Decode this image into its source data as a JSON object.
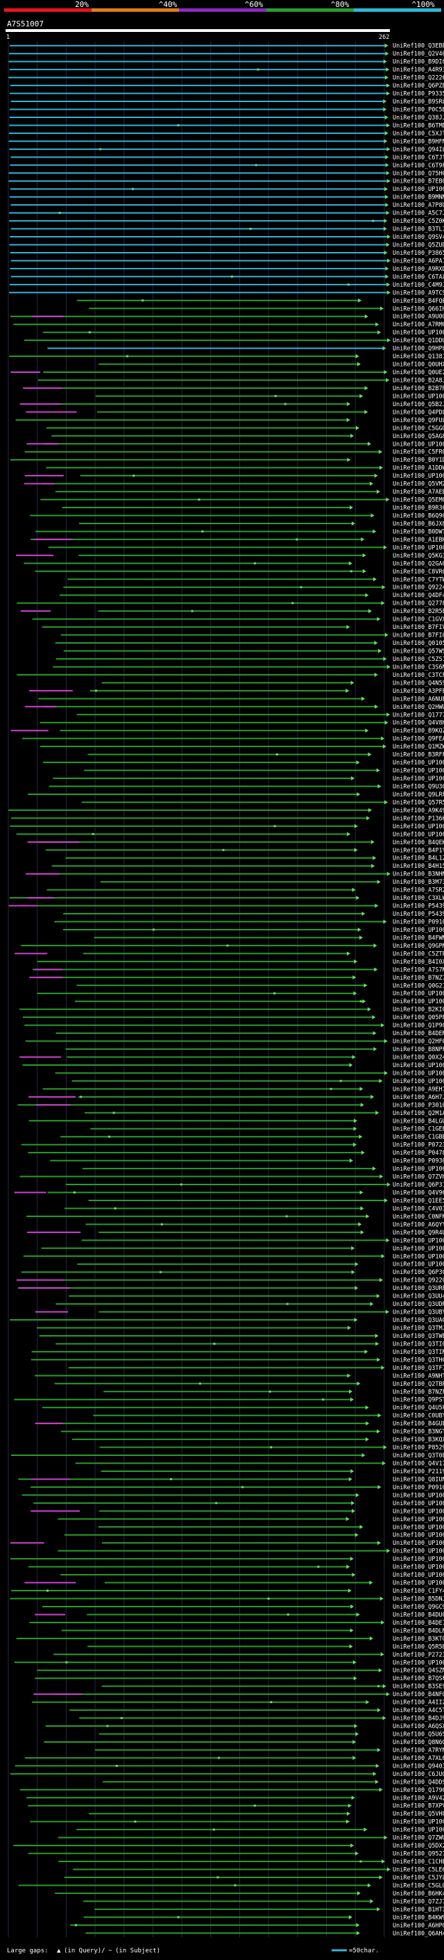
{
  "header": {
    "scale_labels": [
      "20%",
      "^40%",
      "^60%",
      "^80%",
      "^100%"
    ],
    "scale_colors": [
      "#e8141a",
      "#e07b1a",
      "#8a2bbf",
      "#2a9d32",
      "#2ab8d4"
    ],
    "query_id": "A7S51007",
    "query_start": "1",
    "query_length": "262"
  },
  "footer": {
    "large_gaps_text": "Large gaps:",
    "in_query_text": "(in Query)/",
    "in_subject_text": "(in Subject)",
    "legend_text": "=50char."
  },
  "colors": {
    "cyan": "#3ab0d8",
    "green": "#2a9d2a",
    "bright_green": "#66e066",
    "magenta": "#d040d0",
    "white": "#ffffff"
  },
  "chart_data": {
    "type": "alignment-overview",
    "title": "A7S51007",
    "query_length": 262,
    "labels": [
      "UniRef100_Q3EBE6",
      "UniRef100_Q2V400",
      "UniRef100_B9DI05",
      "UniRef100_A4R937",
      "UniRef100_Q22263",
      "UniRef100_Q6PZE8",
      "UniRef100_P93358",
      "UniRef100_B9SRL2",
      "UniRef100_P0C5B7",
      "UniRef100_Q38JJ2",
      "UniRef100_B6TMB2",
      "UniRef100_C5XJT8",
      "UniRef100_B9HFN6",
      "UniRef100_Q94IL2",
      "UniRef100_C6TJT5",
      "UniRef100_C6T9F8",
      "UniRef100_Q75H08",
      "UniRef100_B7EB08",
      "UniRef100_UP1000..",
      "UniRef100_B9MNM0",
      "UniRef100_A7P8U0",
      "UniRef100_A5C7J5",
      "UniRef100_C5Z0K0",
      "UniRef100_B3TL77",
      "UniRef100_Q9SV43",
      "UniRef100_Q5ZUD6",
      "UniRef100_P38651",
      "UniRef100_A6PA19",
      "UniRef100_A9RXD0",
      "UniRef100_C6TAX9",
      "UniRef100_C4M9J8",
      "UniRef100_A9TCS7",
      "UniRef100_B4FQE7",
      "UniRef100_Q66IH3",
      "UniRef100_A9U0Q1",
      "UniRef100_A7RM09",
      "UniRef100_UP1000..",
      "UniRef100_Q1DDU7",
      "UniRef100_Q9HPL0",
      "UniRef100_Q13811",
      "UniRef100_Q0UHX3",
      "UniRef100_Q0UE24",
      "UniRef100_B2A8J0",
      "UniRef100_B2B7R5",
      "UniRef100_UP1000..",
      "UniRef100_Q5B2J4",
      "UniRef100_Q4PDL1",
      "UniRef100_Q9FUL2",
      "UniRef100_C5GGQ8",
      "UniRef100_Q5AG81",
      "UniRef100_UP1000..",
      "UniRef100_C5FR01",
      "UniRef100_B0Y1D4",
      "UniRef100_A1DDW7",
      "UniRef100_UP1000..",
      "UniRef100_Q5VMZ4",
      "UniRef100_A7AEB7",
      "UniRef100_Q5EM02",
      "UniRef100_B9R369",
      "UniRef100_B6Q903",
      "UniRef100_B6JX82",
      "UniRef100_B0DWT9",
      "UniRef100_A1EBH2",
      "UniRef100_UP1000..",
      "UniRef100_Q5KG34",
      "UniRef100_Q2GA05",
      "UniRef100_C8VR03",
      "UniRef100_C7YTW2",
      "UniRef100_Q92249",
      "UniRef100_Q4DF46",
      "UniRef100_Q27780",
      "UniRef100_B2R5E4",
      "UniRef100_C1GVX9",
      "UniRef100_B7FIV0",
      "UniRef100_B7FI07",
      "UniRef100_Q01053",
      "UniRef100_Q57WS0",
      "UniRef100_C5ZS16",
      "UniRef100_C3S6N3",
      "UniRef100_C3TCF3",
      "UniRef100_Q4N5S2",
      "UniRef100_A3PFE2",
      "UniRef100_A6NUE9",
      "UniRef100_Q2HWU2",
      "UniRef100_Q17770",
      "UniRef100_Q4V8H9",
      "UniRef100_B9KQZ6",
      "UniRef100_Q9FEA7",
      "UniRef100_Q1MZW3",
      "UniRef100_B3RFF9",
      "UniRef100_UP1000..",
      "UniRef100_UP1000..",
      "UniRef100_UP1000..",
      "UniRef100_Q9U307",
      "UniRef100_Q9LRF6",
      "UniRef100_Q57R59",
      "UniRef100_A9K496",
      "UniRef100_P13667",
      "UniRef100_UP1000..",
      "UniRef100_UP1000..",
      "UniRef100_B4QEK5",
      "UniRef100_B4P1Y3",
      "UniRef100_B4L127",
      "UniRef100_B4H155",
      "UniRef100_B3NHN4",
      "UniRef100_B3M733",
      "UniRef100_A7SR22",
      "UniRef100_C3XLW1",
      "UniRef100_P54399-2",
      "UniRef100_P54399",
      "UniRef100_P09102",
      "UniRef100_UP1000..",
      "UniRef100_B4FWM2",
      "UniRef100_Q9GPM2",
      "UniRef100_C5ZTP5",
      "UniRef100_B4I0X8",
      "UniRef100_A7S7M8",
      "UniRef100_B7NZ72",
      "UniRef100_Q0G216",
      "UniRef100_UP1000..",
      "UniRef100_UP1000..",
      "UniRef100_B2KI00",
      "UniRef100_Q05PP0",
      "UniRef100_Q1P9C5",
      "UniRef100_B4DEM1",
      "UniRef100_Q2HF02",
      "UniRef100_B8NPF9",
      "UniRef100_Q0X248",
      "UniRef100_UP1000..",
      "UniRef100_UP1000..",
      "UniRef100_UP1000..",
      "UniRef100_A9EH76",
      "UniRef100_A6H7J6",
      "UniRef100_P30101",
      "UniRef100_Q2M1A2",
      "UniRef100_B4LGU3",
      "UniRef100_C1GEE2",
      "UniRef100_C1GBB3",
      "UniRef100_P07237",
      "UniRef100_P04785",
      "UniRef100_P09307",
      "UniRef100_UP1000..",
      "UniRef100_Q7ZVH2",
      "UniRef100_Q6P311",
      "UniRef100_Q4V963",
      "UniRef100_Q1EE59",
      "UniRef100_C4V037",
      "UniRef100_C0NFM2",
      "UniRef100_A6QYY4",
      "UniRef100_Q9R4U2",
      "UniRef100_UP1000..",
      "UniRef100_UP1000..",
      "UniRef100_UP1000..",
      "UniRef100_UP1000..",
      "UniRef100_Q6P3C0",
      "UniRef100_Q922C8",
      "UniRef100_Q3URP6",
      "UniRef100_Q3UU48",
      "UniRef100_Q3UDR2",
      "UniRef100_Q3UBY9",
      "UniRef100_Q3UAC3",
      "UniRef100_Q3TMJ8",
      "UniRef100_Q3TWE3",
      "UniRef100_Q3TI05",
      "UniRef100_Q3TIM0",
      "UniRef100_Q3THC3",
      "UniRef100_Q3TF72",
      "UniRef100_A9NHT1",
      "UniRef100_Q2TBP4",
      "UniRef100_B7NZF1",
      "UniRef100_Q9PST0",
      "UniRef100_Q4U5F6",
      "UniRef100_C0UBY4",
      "UniRef100_B4GUE5",
      "UniRef100_B3NGT9",
      "UniRef100_B3KQX2",
      "UniRef100_P85299",
      "UniRef100_Q3T0E4",
      "UniRef100_Q4V174",
      "UniRef100_P21195",
      "UniRef100_Q8IUN0",
      "UniRef100_P09103",
      "UniRef100_UP1000..",
      "UniRef100_UP1000..",
      "UniRef100_UP1000..",
      "UniRef100_UP1000..",
      "UniRef100_UP1000..",
      "UniRef100_UP1000..",
      "UniRef100_UP1000..",
      "UniRef100_UP1000..",
      "UniRef100_UP1000..",
      "UniRef100_UP1000..",
      "UniRef100_UP1000..",
      "UniRef100_UP1000..",
      "UniRef100_C1FY49",
      "UniRef100_B5DNJ7",
      "UniRef100_Q9GC96",
      "UniRef100_B4DU05",
      "UniRef100_B4DE78",
      "UniRef100_B4DLN6",
      "UniRef100_B3KTQ9",
      "UniRef100_Q5R5B6",
      "UniRef100_P27237",
      "UniRef100_UP1000..",
      "UniRef100_Q4SZN7",
      "UniRef100_B7QSF1",
      "UniRef100_B3SE97",
      "UniRef100_B4NFQ4",
      "UniRef100_A4IIZ8",
      "UniRef100_A4C5T6",
      "UniRef100_B4DJ98",
      "UniRef100_A6QSX3",
      "UniRef100_Q5U6S4",
      "UniRef100_Q8N6Q6",
      "UniRef100_A7RYN6",
      "UniRef100_A7XL61",
      "UniRef100_Q9403A",
      "UniRef100_C6JUQ0",
      "UniRef100_Q4DDS4",
      "UniRef100_Q17908",
      "UniRef100_A9V426",
      "UniRef100_B7XPV1",
      "UniRef100_Q5VH82",
      "UniRef100_UP1000..",
      "UniRef100_UP1000..",
      "UniRef100_Q7ZWU3",
      "UniRef100_Q5DX20",
      "UniRef100_Q95276",
      "UniRef100_C1CHE3",
      "UniRef100_C5LE67",
      "UniRef100_C5JYL8",
      "UniRef100_C5GLQ9",
      "UniRef100_B6HK48",
      "UniRef100_Q7ZJ75",
      "UniRef100_B1HTI6",
      "UniRef100_B4KW98",
      "UniRef100_A6HPG3",
      "UniRef100_Q6AH40"
    ]
  }
}
